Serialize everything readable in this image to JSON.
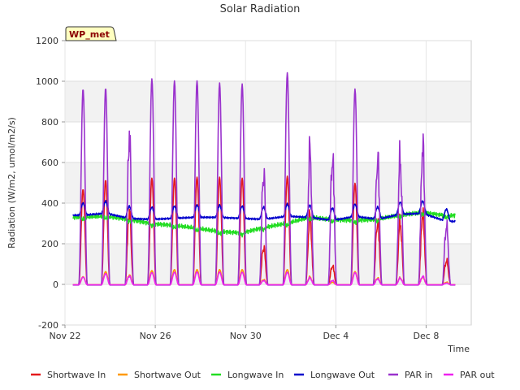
{
  "chart_data": {
    "type": "line",
    "title": "Solar Radiation",
    "xlabel": "Time",
    "ylabel": "Radiation (W/m2, umol/m2/s)",
    "badge": "WP_met",
    "ylim": [
      -200,
      1200
    ],
    "yticks": [
      -200,
      0,
      200,
      400,
      600,
      800,
      1000,
      1200
    ],
    "xlim_days": [
      0,
      18
    ],
    "xticks": [
      {
        "day": 0,
        "label": "Nov 22"
      },
      {
        "day": 4,
        "label": "Nov 26"
      },
      {
        "day": 8,
        "label": "Nov 30"
      },
      {
        "day": 12,
        "label": "Dec 4"
      },
      {
        "day": 16,
        "label": "Dec 8"
      }
    ],
    "grid_bands": true,
    "legend_position": "bottom",
    "data_start_day": 0.35,
    "data_end_day": 17.3,
    "day_peaks": [
      {
        "day": 0.8,
        "sw_in": 470,
        "sw_out": 40,
        "lw_in": 330,
        "lw_out": 400,
        "par_in": 965,
        "par_out": 38
      },
      {
        "day": 1.8,
        "sw_in": 515,
        "sw_out": 65,
        "lw_in": 335,
        "lw_out": 410,
        "par_in": 970,
        "par_out": 55
      },
      {
        "day": 2.85,
        "sw_in": 420,
        "sw_out": 55,
        "lw_in": 320,
        "lw_out": 385,
        "par_in": 855,
        "par_out": 50
      },
      {
        "day": 3.85,
        "sw_in": 525,
        "sw_out": 70,
        "lw_in": 300,
        "lw_out": 380,
        "par_in": 1015,
        "par_out": 60
      },
      {
        "day": 4.85,
        "sw_in": 525,
        "sw_out": 75,
        "lw_in": 290,
        "lw_out": 385,
        "par_in": 1005,
        "par_out": 62
      },
      {
        "day": 5.85,
        "sw_in": 530,
        "sw_out": 75,
        "lw_in": 275,
        "lw_out": 390,
        "par_in": 1005,
        "par_out": 63
      },
      {
        "day": 6.85,
        "sw_in": 530,
        "sw_out": 75,
        "lw_in": 260,
        "lw_out": 390,
        "par_in": 995,
        "par_out": 63
      },
      {
        "day": 7.85,
        "sw_in": 525,
        "sw_out": 75,
        "lw_in": 255,
        "lw_out": 385,
        "par_in": 990,
        "par_out": 62
      },
      {
        "day": 8.8,
        "sw_in": 220,
        "sw_out": 30,
        "lw_in": 280,
        "lw_out": 380,
        "par_in": 655,
        "par_out": 25
      },
      {
        "day": 9.85,
        "sw_in": 535,
        "sw_out": 75,
        "lw_in": 300,
        "lw_out": 395,
        "par_in": 1045,
        "par_out": 62
      },
      {
        "day": 10.85,
        "sw_in": 390,
        "sw_out": 45,
        "lw_in": 330,
        "lw_out": 390,
        "par_in": 770,
        "par_out": 40
      },
      {
        "day": 11.85,
        "sw_in": 110,
        "sw_out": 15,
        "lw_in": 320,
        "lw_out": 375,
        "par_in": 740,
        "par_out": 25
      },
      {
        "day": 12.85,
        "sw_in": 500,
        "sw_out": 65,
        "lw_in": 315,
        "lw_out": 395,
        "par_in": 965,
        "par_out": 60
      },
      {
        "day": 13.85,
        "sw_in": 370,
        "sw_out": 40,
        "lw_in": 320,
        "lw_out": 380,
        "par_in": 745,
        "par_out": 35
      },
      {
        "day": 14.85,
        "sw_in": 360,
        "sw_out": 40,
        "lw_in": 340,
        "lw_out": 405,
        "par_in": 735,
        "par_out": 38
      },
      {
        "day": 15.85,
        "sw_in": 410,
        "sw_out": 45,
        "lw_in": 355,
        "lw_out": 410,
        "par_in": 805,
        "par_out": 48
      },
      {
        "day": 16.9,
        "sw_in": 140,
        "sw_out": 15,
        "lw_in": 340,
        "lw_out": 370,
        "par_in": 345,
        "par_out": 10
      }
    ],
    "series": [
      {
        "name": "Shortwave In",
        "key": "sw_in",
        "color": "#e41a1c"
      },
      {
        "name": "Shortwave Out",
        "key": "sw_out",
        "color": "#ff9900"
      },
      {
        "name": "Longwave In",
        "key": "lw_in",
        "color": "#22dd22"
      },
      {
        "name": "Longwave Out",
        "key": "lw_out",
        "color": "#0000cc"
      },
      {
        "name": "PAR in",
        "key": "par_in",
        "color": "#9a32cd"
      },
      {
        "name": "PAR out",
        "key": "par_out",
        "color": "#ee22ee"
      }
    ]
  }
}
